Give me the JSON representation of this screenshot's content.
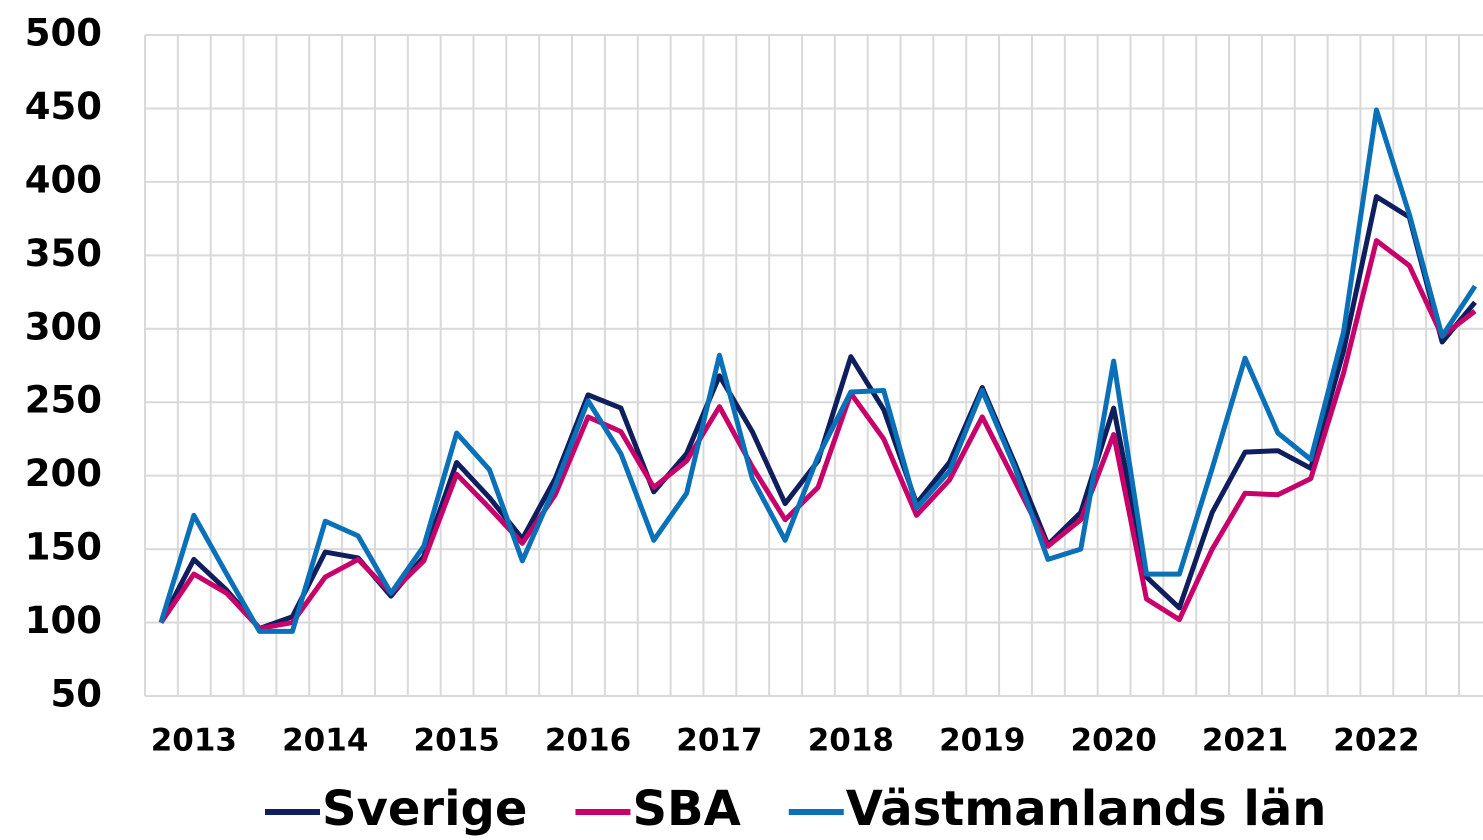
{
  "chart_data": {
    "type": "line",
    "categories": [
      null,
      "2013",
      null,
      null,
      null,
      "2014",
      null,
      null,
      null,
      "2015",
      null,
      null,
      null,
      "2016",
      null,
      null,
      null,
      "2017",
      null,
      null,
      null,
      "2018",
      null,
      null,
      null,
      "2019",
      null,
      null,
      null,
      "2020",
      null,
      null,
      null,
      "2021",
      null,
      null,
      null,
      "2022",
      null,
      null,
      null
    ],
    "series": [
      {
        "name": "Sverige",
        "color": "#0f1f5e",
        "values": [
          100,
          143,
          122,
          96,
          104,
          148,
          144,
          118,
          145,
          209,
          185,
          157,
          198,
          255,
          246,
          189,
          215,
          268,
          230,
          181,
          210,
          281,
          245,
          181,
          209,
          260,
          208,
          153,
          175,
          246,
          131,
          110,
          175,
          216,
          217,
          205,
          285,
          390,
          376,
          291,
          318
        ]
      },
      {
        "name": "SBA",
        "color": "#c8006a",
        "values": [
          100,
          133,
          120,
          96,
          100,
          131,
          143,
          120,
          142,
          201,
          178,
          154,
          187,
          240,
          230,
          192,
          210,
          247,
          206,
          170,
          192,
          256,
          225,
          173,
          197,
          240,
          196,
          152,
          170,
          228,
          116,
          102,
          150,
          188,
          187,
          198,
          270,
          360,
          343,
          295,
          312
        ]
      },
      {
        "name": "Västmanlands län",
        "color": "#0a70b8",
        "values": [
          100,
          173,
          133,
          94,
          94,
          169,
          159,
          120,
          152,
          229,
          204,
          142,
          193,
          251,
          215,
          156,
          188,
          282,
          198,
          156,
          213,
          257,
          258,
          178,
          203,
          258,
          205,
          143,
          150,
          278,
          133,
          133,
          205,
          280,
          229,
          211,
          298,
          449,
          378,
          295,
          329
        ]
      }
    ],
    "ylim": [
      50,
      500
    ],
    "yticks": [
      50,
      100,
      150,
      200,
      250,
      300,
      350,
      400,
      450,
      500
    ],
    "grid": true,
    "legend": "bottom"
  }
}
